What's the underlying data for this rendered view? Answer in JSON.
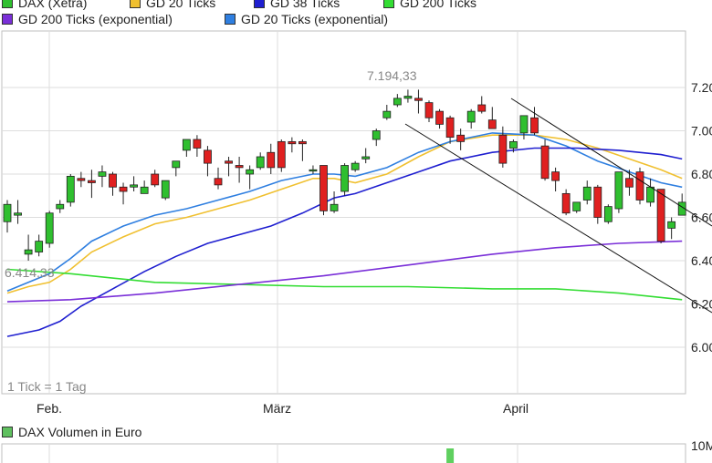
{
  "legend": [
    {
      "label": "DAX (Xetra)",
      "color": "#2fbf2f"
    },
    {
      "label": "GD 20 Ticks",
      "color": "#f0c030"
    },
    {
      "label": "GD 38 Ticks",
      "color": "#1f1fd0"
    },
    {
      "label": "GD 200 Ticks",
      "color": "#33dd33"
    },
    {
      "label": "GD 200 Ticks (exponential)",
      "color": "#7a2fd8"
    },
    {
      "label": "GD 20 Ticks (exponential)",
      "color": "#2f7fe0"
    }
  ],
  "tick_note": "1 Tick = 1 Tag",
  "volume_legend": {
    "label": "DAX Volumen in Euro",
    "color": "#5fc05f",
    "axis_label": "10M"
  },
  "chart_data": {
    "type": "candlestick",
    "y_ticks": [
      "7.20",
      "7.00",
      "6.80",
      "6.60",
      "6.40",
      "6.20",
      "6.00"
    ],
    "x_labels": [
      "Feb.",
      "März",
      "April"
    ],
    "annotations": [
      "7.194,33",
      "6.414,33"
    ],
    "candles": [
      [
        6.58,
        6.66,
        6.53,
        6.68
      ],
      [
        6.61,
        6.62,
        6.57,
        6.68
      ],
      [
        6.43,
        6.45,
        6.4,
        6.52
      ],
      [
        6.44,
        6.49,
        6.42,
        6.52
      ],
      [
        6.48,
        6.62,
        6.46,
        6.63
      ],
      [
        6.64,
        6.66,
        6.62,
        6.68
      ],
      [
        6.67,
        6.79,
        6.65,
        6.8
      ],
      [
        6.78,
        6.77,
        6.74,
        6.81
      ],
      [
        6.77,
        6.76,
        6.69,
        6.82
      ],
      [
        6.79,
        6.81,
        6.74,
        6.84
      ],
      [
        6.8,
        6.74,
        6.7,
        6.81
      ],
      [
        6.74,
        6.72,
        6.66,
        6.76
      ],
      [
        6.74,
        6.75,
        6.72,
        6.79
      ],
      [
        6.71,
        6.74,
        6.71,
        6.77
      ],
      [
        6.8,
        6.75,
        6.74,
        6.82
      ],
      [
        6.69,
        6.77,
        6.68,
        6.77
      ],
      [
        6.83,
        6.86,
        6.79,
        6.86
      ],
      [
        6.91,
        6.96,
        6.88,
        6.96
      ],
      [
        6.96,
        6.92,
        6.88,
        6.98
      ],
      [
        6.91,
        6.85,
        6.79,
        6.93
      ],
      [
        6.78,
        6.75,
        6.73,
        6.83
      ],
      [
        6.86,
        6.85,
        6.79,
        6.88
      ],
      [
        6.84,
        6.83,
        6.76,
        6.88
      ],
      [
        6.8,
        6.82,
        6.73,
        6.84
      ],
      [
        6.83,
        6.88,
        6.82,
        6.9
      ],
      [
        6.9,
        6.83,
        6.8,
        6.94
      ],
      [
        6.95,
        6.83,
        6.81,
        6.96
      ],
      [
        6.95,
        6.94,
        6.9,
        6.97
      ],
      [
        6.95,
        6.94,
        6.86,
        6.96
      ],
      [
        6.82,
        6.82,
        6.8,
        6.84
      ],
      [
        6.84,
        6.63,
        6.61,
        6.84
      ],
      [
        6.63,
        6.66,
        6.62,
        6.72
      ],
      [
        6.72,
        6.84,
        6.7,
        6.85
      ],
      [
        6.82,
        6.85,
        6.81,
        6.86
      ],
      [
        6.87,
        6.88,
        6.85,
        6.92
      ],
      [
        6.96,
        7.0,
        6.93,
        7.01
      ],
      [
        7.06,
        7.09,
        7.05,
        7.12
      ],
      [
        7.12,
        7.15,
        7.11,
        7.17
      ],
      [
        7.15,
        7.16,
        7.13,
        7.19
      ],
      [
        7.15,
        7.14,
        7.08,
        7.19
      ],
      [
        7.13,
        7.06,
        7.04,
        7.14
      ],
      [
        7.09,
        7.03,
        7.01,
        7.1
      ],
      [
        7.06,
        6.97,
        6.94,
        7.07
      ],
      [
        6.98,
        6.95,
        6.91,
        7.01
      ],
      [
        7.04,
        7.09,
        7.01,
        7.1
      ],
      [
        7.12,
        7.09,
        7.08,
        7.16
      ],
      [
        7.05,
        7.01,
        7.01,
        7.11
      ],
      [
        6.98,
        6.85,
        6.83,
        7.02
      ],
      [
        6.92,
        6.95,
        6.9,
        6.96
      ],
      [
        6.99,
        7.07,
        6.96,
        7.07
      ],
      [
        7.06,
        6.99,
        6.98,
        7.11
      ],
      [
        6.93,
        6.78,
        6.77,
        6.96
      ],
      [
        6.81,
        6.77,
        6.72,
        6.83
      ],
      [
        6.71,
        6.62,
        6.61,
        6.73
      ],
      [
        6.63,
        6.67,
        6.62,
        6.67
      ],
      [
        6.68,
        6.74,
        6.66,
        6.77
      ],
      [
        6.74,
        6.6,
        6.57,
        6.75
      ],
      [
        6.58,
        6.65,
        6.57,
        6.66
      ],
      [
        6.64,
        6.81,
        6.62,
        6.81
      ],
      [
        6.78,
        6.74,
        6.7,
        6.82
      ],
      [
        6.81,
        6.68,
        6.66,
        6.83
      ],
      [
        6.67,
        6.74,
        6.65,
        6.78
      ],
      [
        6.73,
        6.49,
        6.48,
        6.73
      ],
      [
        6.55,
        6.58,
        6.5,
        6.6
      ],
      [
        6.61,
        6.67,
        6.61,
        6.71
      ]
    ],
    "series": [
      {
        "name": "GD 20 Ticks",
        "color": "#f0c030",
        "values": [
          [
            0,
            6.25
          ],
          [
            2,
            6.28
          ],
          [
            4,
            6.3
          ],
          [
            6,
            6.36
          ],
          [
            8,
            6.44
          ],
          [
            11,
            6.51
          ],
          [
            14,
            6.57
          ],
          [
            17,
            6.6
          ],
          [
            20,
            6.64
          ],
          [
            23,
            6.68
          ],
          [
            26,
            6.73
          ],
          [
            29,
            6.78
          ],
          [
            31,
            6.78
          ],
          [
            33,
            6.76
          ],
          [
            36,
            6.8
          ],
          [
            39,
            6.88
          ],
          [
            42,
            6.95
          ],
          [
            46,
            6.98
          ],
          [
            50,
            6.98
          ],
          [
            53,
            6.96
          ],
          [
            56,
            6.92
          ],
          [
            59,
            6.87
          ],
          [
            62,
            6.82
          ],
          [
            64,
            6.78
          ]
        ]
      },
      {
        "name": "GD 20 Ticks (exponential)",
        "color": "#2f7fe0",
        "values": [
          [
            0,
            6.26
          ],
          [
            2,
            6.3
          ],
          [
            4,
            6.34
          ],
          [
            6,
            6.41
          ],
          [
            8,
            6.49
          ],
          [
            11,
            6.56
          ],
          [
            14,
            6.61
          ],
          [
            17,
            6.64
          ],
          [
            20,
            6.68
          ],
          [
            23,
            6.72
          ],
          [
            26,
            6.77
          ],
          [
            29,
            6.8
          ],
          [
            31,
            6.8
          ],
          [
            33,
            6.79
          ],
          [
            36,
            6.83
          ],
          [
            39,
            6.9
          ],
          [
            42,
            6.95
          ],
          [
            46,
            6.99
          ],
          [
            50,
            6.98
          ],
          [
            53,
            6.93
          ],
          [
            56,
            6.86
          ],
          [
            59,
            6.81
          ],
          [
            62,
            6.76
          ],
          [
            64,
            6.74
          ]
        ]
      },
      {
        "name": "GD 38 Ticks",
        "color": "#1f1fd0",
        "values": [
          [
            0,
            6.05
          ],
          [
            3,
            6.08
          ],
          [
            5,
            6.12
          ],
          [
            7,
            6.19
          ],
          [
            10,
            6.27
          ],
          [
            13,
            6.35
          ],
          [
            16,
            6.42
          ],
          [
            19,
            6.48
          ],
          [
            22,
            6.52
          ],
          [
            25,
            6.56
          ],
          [
            28,
            6.62
          ],
          [
            31,
            6.69
          ],
          [
            33,
            6.71
          ],
          [
            36,
            6.76
          ],
          [
            39,
            6.81
          ],
          [
            42,
            6.86
          ],
          [
            46,
            6.9
          ],
          [
            50,
            6.92
          ],
          [
            54,
            6.92
          ],
          [
            58,
            6.91
          ],
          [
            62,
            6.89
          ],
          [
            64,
            6.87
          ]
        ]
      },
      {
        "name": "GD 200 Ticks",
        "color": "#33dd33",
        "values": [
          [
            0,
            6.36
          ],
          [
            6,
            6.34
          ],
          [
            14,
            6.3
          ],
          [
            22,
            6.29
          ],
          [
            30,
            6.28
          ],
          [
            38,
            6.28
          ],
          [
            46,
            6.27
          ],
          [
            52,
            6.27
          ],
          [
            58,
            6.25
          ],
          [
            64,
            6.22
          ]
        ]
      },
      {
        "name": "GD 200 Ticks (exponential)",
        "color": "#7a2fd8",
        "values": [
          [
            0,
            6.21
          ],
          [
            6,
            6.22
          ],
          [
            14,
            6.25
          ],
          [
            22,
            6.29
          ],
          [
            30,
            6.33
          ],
          [
            38,
            6.38
          ],
          [
            46,
            6.43
          ],
          [
            52,
            6.46
          ],
          [
            58,
            6.48
          ],
          [
            64,
            6.49
          ]
        ]
      }
    ],
    "volume_bar": {
      "index": 42
    }
  }
}
